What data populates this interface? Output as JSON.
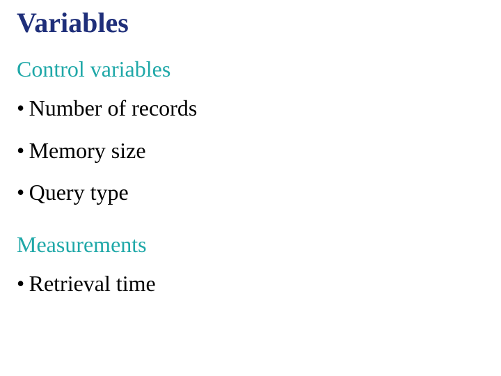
{
  "colors": {
    "title": "#1f2f7a",
    "subhead": "#1fa8a8",
    "body": "#000000",
    "background": "#ffffff"
  },
  "typography": {
    "family": "Times New Roman",
    "title_size_pt": 40,
    "subhead_size_pt": 32,
    "body_size_pt": 32
  },
  "title": "Variables",
  "sections": [
    {
      "heading": "Control variables",
      "bullets": [
        "Number of records",
        "Memory size",
        "Query type"
      ]
    },
    {
      "heading": "Measurements",
      "bullets": [
        "Retrieval time"
      ]
    }
  ]
}
